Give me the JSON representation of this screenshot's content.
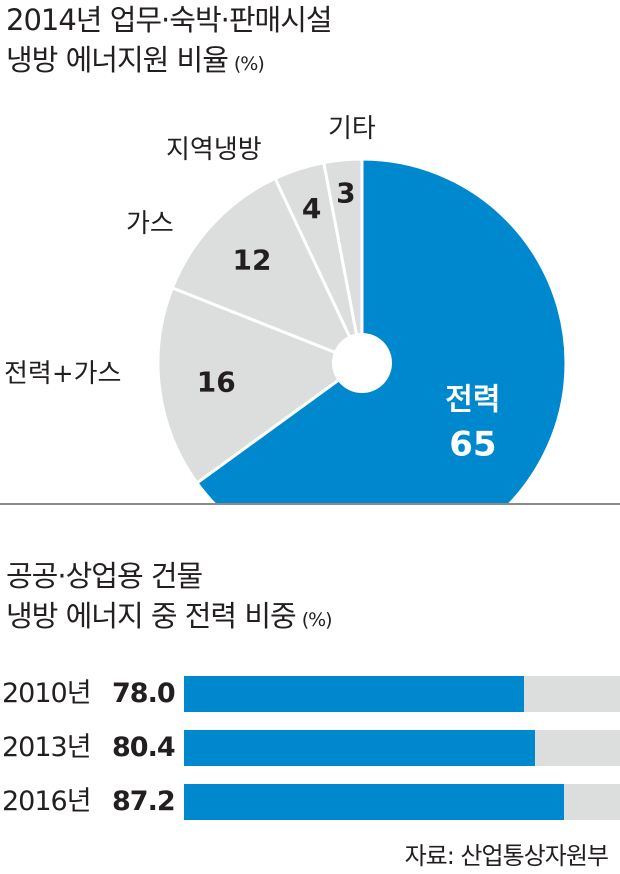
{
  "chart_data": [
    {
      "type": "pie",
      "title": "2014년 업무·숙박·판매시설",
      "subtitle": "냉방 에너지원 비율",
      "unit": "(%)",
      "slices": [
        {
          "label": "전력",
          "value": 65,
          "color": "#0088cf"
        },
        {
          "label": "전력+가스",
          "value": 16,
          "color": "#dcdddd"
        },
        {
          "label": "가스",
          "value": 12,
          "color": "#dcdddd"
        },
        {
          "label": "지역냉방",
          "value": 4,
          "color": "#dcdddd"
        },
        {
          "label": "기타",
          "value": 3,
          "color": "#dcdddd"
        }
      ]
    },
    {
      "type": "bar",
      "title": "공공·상업용 건물",
      "subtitle": "냉방 에너지 중 전력 비중",
      "unit": "(%)",
      "categories": [
        "2010년",
        "2013년",
        "2016년"
      ],
      "values": [
        78.0,
        80.4,
        87.2
      ],
      "ylim": [
        0,
        100
      ],
      "bar_color": "#0088cf",
      "track_color": "#dcdddd"
    }
  ],
  "source": "자료: 산업통상자원부"
}
